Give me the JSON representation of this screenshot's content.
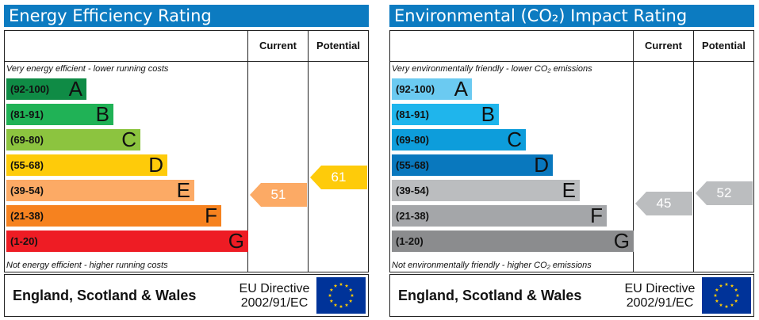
{
  "chart_data": [
    {
      "type": "table",
      "title": "Energy Efficiency Rating",
      "columns": [
        "Current",
        "Potential"
      ],
      "top_caption": "Very energy efficient - lower running costs",
      "bottom_caption": "Not energy efficient - higher running costs",
      "bands": [
        {
          "range": "(92-100)",
          "letter": "A",
          "color": "#0f8b45",
          "min": 92,
          "max": 100
        },
        {
          "range": "(81-91)",
          "letter": "B",
          "color": "#20b256",
          "min": 81,
          "max": 91
        },
        {
          "range": "(69-80)",
          "letter": "C",
          "color": "#8cc43f",
          "min": 69,
          "max": 80
        },
        {
          "range": "(55-68)",
          "letter": "D",
          "color": "#fecb0a",
          "min": 55,
          "max": 68
        },
        {
          "range": "(39-54)",
          "letter": "E",
          "color": "#fcaa65",
          "min": 39,
          "max": 54
        },
        {
          "range": "(21-38)",
          "letter": "F",
          "color": "#f6821f",
          "min": 21,
          "max": 38
        },
        {
          "range": "(1-20)",
          "letter": "G",
          "color": "#ee1c24",
          "min": 1,
          "max": 20
        }
      ],
      "current": {
        "value": 51,
        "label": "51",
        "color": "#fcaa65"
      },
      "potential": {
        "value": 61,
        "label": "61",
        "color": "#fecb0a"
      },
      "footer": {
        "region": "England, Scotland & Wales",
        "directive_line1": "EU Directive",
        "directive_line2": "2002/91/EC"
      }
    },
    {
      "type": "table",
      "title": "Environmental (CO₂) Impact Rating",
      "columns": [
        "Current",
        "Potential"
      ],
      "top_caption": "Very environmentally friendly - lower CO₂ emissions",
      "bottom_caption": "Not environmentally friendly - higher CO₂ emissions",
      "bands": [
        {
          "range": "(92-100)",
          "letter": "A",
          "color": "#6bcaf1",
          "min": 92,
          "max": 100
        },
        {
          "range": "(81-91)",
          "letter": "B",
          "color": "#1fb5ec",
          "min": 81,
          "max": 91
        },
        {
          "range": "(69-80)",
          "letter": "C",
          "color": "#0d9ddb",
          "min": 69,
          "max": 80
        },
        {
          "range": "(55-68)",
          "letter": "D",
          "color": "#0978be",
          "min": 55,
          "max": 68
        },
        {
          "range": "(39-54)",
          "letter": "E",
          "color": "#bbbdbf",
          "min": 39,
          "max": 54
        },
        {
          "range": "(21-38)",
          "letter": "F",
          "color": "#a4a6a9",
          "min": 21,
          "max": 38
        },
        {
          "range": "(1-20)",
          "letter": "G",
          "color": "#8b8c8e",
          "min": 1,
          "max": 20
        }
      ],
      "current": {
        "value": 45,
        "label": "45",
        "color": "#bbbdbf"
      },
      "potential": {
        "value": 52,
        "label": "52",
        "color": "#bbbdbf"
      },
      "footer": {
        "region": "England, Scotland & Wales",
        "directive_line1": "EU Directive",
        "directive_line2": "2002/91/EC"
      }
    }
  ]
}
